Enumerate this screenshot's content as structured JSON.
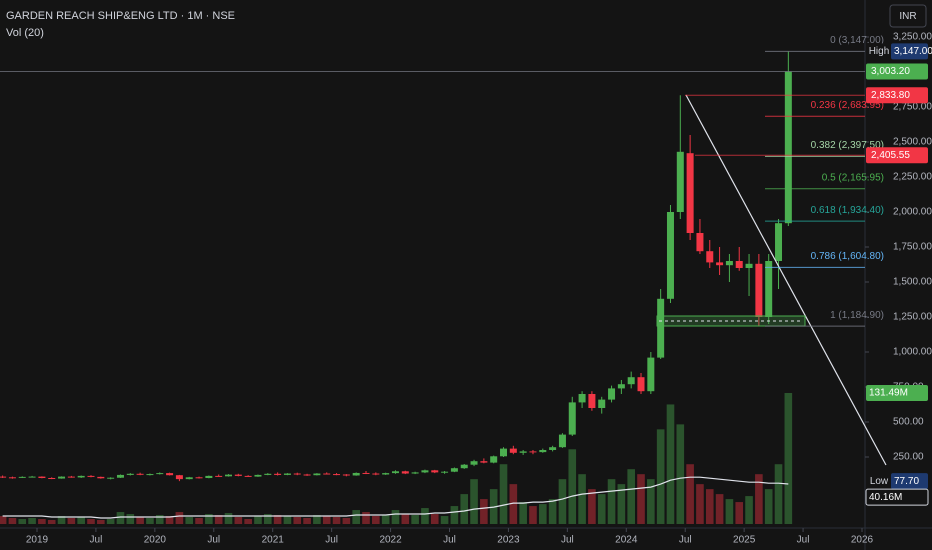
{
  "header": {
    "symbol": "GARDEN REACH SHIP&ENG LTD · 1M · NSE",
    "indicator": "Vol (20)",
    "currency": "INR"
  },
  "chart_data": {
    "type": "candlestick",
    "x": [
      "2018-09",
      "2018-10",
      "2018-11",
      "2018-12",
      "2019-01",
      "2019-02",
      "2019-03",
      "2019-04",
      "2019-05",
      "2019-06",
      "2019-07",
      "2019-08",
      "2019-09",
      "2019-10",
      "2019-11",
      "2019-12",
      "2020-01",
      "2020-02",
      "2020-03",
      "2020-04",
      "2020-05",
      "2020-06",
      "2020-07",
      "2020-08",
      "2020-09",
      "2020-10",
      "2020-11",
      "2020-12",
      "2021-01",
      "2021-02",
      "2021-03",
      "2021-04",
      "2021-05",
      "2021-06",
      "2021-07",
      "2021-08",
      "2021-09",
      "2021-10",
      "2021-11",
      "2021-12",
      "2022-01",
      "2022-02",
      "2022-03",
      "2022-04",
      "2022-05",
      "2022-06",
      "2022-07",
      "2022-08",
      "2022-09",
      "2022-10",
      "2022-11",
      "2022-12",
      "2023-01",
      "2023-02",
      "2023-03",
      "2023-04",
      "2023-05",
      "2023-06",
      "2023-07",
      "2023-08",
      "2023-09",
      "2023-10",
      "2023-11",
      "2023-12",
      "2024-01",
      "2024-02",
      "2024-03",
      "2024-04",
      "2024-05",
      "2024-06",
      "2024-07",
      "2024-08",
      "2024-09",
      "2024-10",
      "2024-11",
      "2024-12",
      "2025-01",
      "2025-02",
      "2025-03",
      "2025-04",
      "2025-05"
    ],
    "open": [
      110,
      105,
      102,
      108,
      110,
      100,
      96,
      110,
      104,
      115,
      108,
      98,
      102,
      122,
      130,
      125,
      128,
      135,
      120,
      92,
      105,
      100,
      115,
      112,
      124,
      115,
      110,
      122,
      130,
      122,
      132,
      125,
      120,
      132,
      128,
      125,
      118,
      136,
      132,
      125,
      135,
      148,
      132,
      140,
      155,
      140,
      145,
      170,
      195,
      220,
      210,
      255,
      310,
      280,
      290,
      285,
      300,
      320,
      410,
      640,
      700,
      600,
      660,
      740,
      770,
      820,
      720,
      960,
      1380,
      2000,
      2420,
      1850,
      1720,
      1640,
      1620,
      1650,
      1600,
      1630,
      1250,
      1650,
      1920
    ],
    "high": [
      118,
      110,
      112,
      115,
      112,
      105,
      112,
      115,
      118,
      120,
      110,
      105,
      125,
      135,
      138,
      132,
      140,
      138,
      122,
      108,
      110,
      118,
      125,
      128,
      130,
      120,
      125,
      135,
      140,
      135,
      138,
      130,
      135,
      140,
      135,
      128,
      140,
      150,
      140,
      138,
      155,
      152,
      145,
      160,
      158,
      150,
      175,
      200,
      230,
      240,
      260,
      320,
      330,
      300,
      300,
      310,
      330,
      420,
      680,
      720,
      720,
      680,
      760,
      800,
      860,
      850,
      1000,
      1450,
      2050,
      2833.8,
      2550,
      1950,
      1800,
      1750,
      1700,
      1750,
      1700,
      1700,
      1700,
      1950,
      3147
    ],
    "low": [
      100,
      95,
      100,
      104,
      98,
      92,
      95,
      102,
      100,
      105,
      95,
      90,
      100,
      118,
      120,
      118,
      125,
      118,
      77.7,
      90,
      96,
      98,
      110,
      110,
      112,
      108,
      108,
      120,
      118,
      120,
      120,
      115,
      118,
      125,
      120,
      112,
      116,
      128,
      120,
      122,
      130,
      128,
      128,
      135,
      135,
      130,
      142,
      165,
      185,
      205,
      205,
      250,
      270,
      265,
      270,
      280,
      290,
      315,
      400,
      600,
      580,
      560,
      640,
      700,
      740,
      700,
      700,
      950,
      1350,
      1950,
      1800,
      1700,
      1600,
      1550,
      1500,
      1580,
      1400,
      1184.9,
      1200,
      1450,
      1900
    ],
    "close": [
      105,
      102,
      108,
      110,
      100,
      96,
      110,
      104,
      115,
      108,
      98,
      102,
      122,
      130,
      125,
      128,
      135,
      120,
      92,
      105,
      100,
      115,
      112,
      124,
      115,
      110,
      122,
      130,
      122,
      132,
      125,
      120,
      132,
      128,
      125,
      118,
      136,
      132,
      125,
      135,
      148,
      132,
      140,
      155,
      140,
      145,
      170,
      195,
      220,
      210,
      255,
      310,
      280,
      290,
      285,
      300,
      320,
      410,
      640,
      700,
      600,
      660,
      740,
      770,
      820,
      720,
      960,
      1380,
      2000,
      2430,
      1850,
      1720,
      1640,
      1620,
      1650,
      1600,
      1630,
      1250,
      1650,
      1920,
      3003.2
    ],
    "volume": [
      8,
      6,
      5,
      6,
      5,
      4,
      8,
      6,
      7,
      5,
      4,
      5,
      12,
      10,
      7,
      6,
      9,
      8,
      12,
      7,
      6,
      10,
      9,
      11,
      7,
      5,
      8,
      10,
      9,
      8,
      7,
      6,
      9,
      8,
      7,
      6,
      14,
      12,
      8,
      9,
      14,
      10,
      9,
      16,
      10,
      8,
      18,
      30,
      45,
      25,
      35,
      60,
      40,
      22,
      18,
      20,
      25,
      45,
      75,
      50,
      35,
      30,
      45,
      40,
      55,
      50,
      45,
      95,
      120,
      100,
      60,
      40,
      35,
      30,
      25,
      22,
      28,
      50,
      35,
      60,
      131.49
    ],
    "volume_ma": [
      8,
      8,
      8,
      8,
      8,
      7,
      7,
      7,
      7,
      7,
      6,
      6,
      7,
      7,
      7,
      7,
      7,
      7,
      8,
      8,
      8,
      8,
      8,
      8,
      8,
      8,
      8,
      8,
      8,
      8,
      8,
      8,
      8,
      8,
      8,
      8,
      9,
      9,
      9,
      9,
      10,
      10,
      10,
      10,
      11,
      11,
      12,
      13,
      15,
      16,
      17,
      19,
      21,
      21,
      22,
      22,
      23,
      25,
      28,
      30,
      31,
      32,
      33,
      34,
      35,
      36,
      37,
      40,
      44,
      46,
      47,
      47,
      46,
      45,
      44,
      43,
      42,
      42,
      41,
      41,
      40.16
    ],
    "up_color": "#4caf50",
    "down_color": "#f23645",
    "volume_ma_color": "#e0e3eb",
    "xlim": [
      "2018-09",
      "2026-01"
    ],
    "xticks": [
      {
        "value": "2019-01",
        "label": "2019"
      },
      {
        "value": "2019-07",
        "label": "Jul"
      },
      {
        "value": "2020-01",
        "label": "2020"
      },
      {
        "value": "2020-07",
        "label": "Jul"
      },
      {
        "value": "2021-01",
        "label": "2021"
      },
      {
        "value": "2021-07",
        "label": "Jul"
      },
      {
        "value": "2022-01",
        "label": "2022"
      },
      {
        "value": "2022-07",
        "label": "Jul"
      },
      {
        "value": "2023-01",
        "label": "2023"
      },
      {
        "value": "2023-07",
        "label": "Jul"
      },
      {
        "value": "2024-01",
        "label": "2024"
      },
      {
        "value": "2024-07",
        "label": "Jul"
      },
      {
        "value": "2025-01",
        "label": "2025"
      },
      {
        "value": "2025-07",
        "label": "Jul"
      },
      {
        "value": "2026-01",
        "label": "2026"
      }
    ],
    "ylim": [
      -200,
      3514.3
    ],
    "yticks": [
      {
        "value": 250,
        "label": "250.00"
      },
      {
        "value": 500,
        "label": "500.00"
      },
      {
        "value": 750,
        "label": "750.00"
      },
      {
        "value": 1000,
        "label": "1,000.00"
      },
      {
        "value": 1250,
        "label": "1,250.00"
      },
      {
        "value": 1500,
        "label": "1,500.00"
      },
      {
        "value": 1750,
        "label": "1,750.00"
      },
      {
        "value": 2000,
        "label": "2,000.00"
      },
      {
        "value": 2250,
        "label": "2,250.00"
      },
      {
        "value": 2500,
        "label": "2,500.00"
      },
      {
        "value": 2750,
        "label": "2,750.00"
      },
      {
        "value": 3250,
        "label": "3,250.00"
      }
    ],
    "fib_levels": [
      {
        "label": "0 (3,147.00)",
        "value": 3147,
        "color": "#787b86"
      },
      {
        "label": "0.236 (2,683.95)",
        "value": 2683.95,
        "color": "#f23645"
      },
      {
        "label": "0.382 (2,397.50)",
        "value": 2397.5,
        "color": "#a5d6a7"
      },
      {
        "label": "0.5 (2,165.95)",
        "value": 2165.95,
        "color": "#4caf50"
      },
      {
        "label": "0.618 (1,934.40)",
        "value": 1934.4,
        "color": "#26a69a"
      },
      {
        "label": "0.786 (1,604.80)",
        "value": 1604.8,
        "color": "#64b5f6"
      },
      {
        "label": "1 (1,184.90)",
        "value": 1184.9,
        "color": "#787b86"
      }
    ],
    "price_tags": [
      {
        "name": "High",
        "value": 3147,
        "label": "3,147.00",
        "color": "#1e3a70"
      },
      {
        "value": 3003.2,
        "label": "3,003.20",
        "color": "#4caf50"
      },
      {
        "value": 2833.8,
        "label": "2,833.80",
        "color": "#f23645"
      },
      {
        "value": 2405.55,
        "label": "2,405.55",
        "color": "#f23645"
      },
      {
        "name": "Low",
        "value": 77.7,
        "label": "77.70",
        "color": "#1e3a70"
      }
    ],
    "volume_tags": [
      {
        "value": 131.49,
        "label": "131.49M",
        "color": "#4caf50"
      },
      {
        "value": 40.16,
        "label": "40.16M",
        "color": "#141414"
      }
    ]
  }
}
